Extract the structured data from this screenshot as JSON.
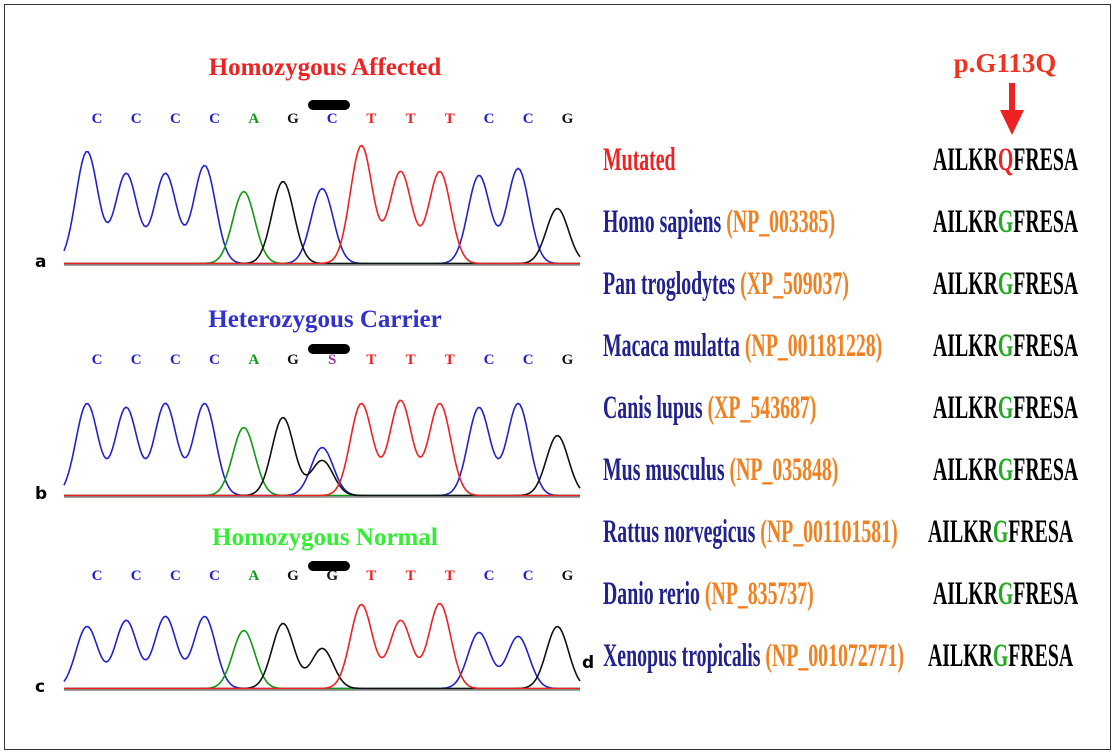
{
  "panels": [
    {
      "label": "a",
      "title": "Homozygous Affected",
      "bases": [
        "C",
        "C",
        "C",
        "C",
        "A",
        "G",
        "C",
        "T",
        "T",
        "T",
        "C",
        "C",
        "G"
      ]
    },
    {
      "label": "b",
      "title": "Heterozygous Carrier",
      "bases": [
        "C",
        "C",
        "C",
        "C",
        "A",
        "G",
        "S",
        "T",
        "T",
        "T",
        "C",
        "C",
        "G"
      ]
    },
    {
      "label": "c",
      "title": "Homozygous Normal",
      "bases": [
        "C",
        "C",
        "C",
        "C",
        "A",
        "G",
        "G",
        "T",
        "T",
        "T",
        "C",
        "C",
        "G"
      ]
    }
  ],
  "alignment": {
    "label": "d",
    "mutation": "p.G113Q",
    "rows": [
      {
        "species": "Mutated",
        "seq_start": "AILKR",
        "residue": "Q",
        "seq_end": "FRESA"
      },
      {
        "species": "Homo sapiens",
        "accession": "(NP_003385)",
        "seq_start": "AILKR",
        "residue": "G",
        "seq_end": "FRESA"
      },
      {
        "species": "Pan troglodytes",
        "accession": "(XP_509037)",
        "seq_start": "AILKR",
        "residue": "G",
        "seq_end": "FRESA"
      },
      {
        "species": "Macaca mulatta",
        "accession": "(NP_001181228)",
        "seq_start": "AILKR",
        "residue": "G",
        "seq_end": "FRESA"
      },
      {
        "species": "Canis lupus",
        "accession": "(XP_543687)",
        "seq_start": "AILKR",
        "residue": "G",
        "seq_end": "FRESA"
      },
      {
        "species": "Mus musculus",
        "accession": "(NP_035848)",
        "seq_start": "AILKR",
        "residue": "G",
        "seq_end": "FRESA"
      },
      {
        "species": "Rattus norvegicus",
        "accession": "(NP_001101581)",
        "seq_start": "AILKR",
        "residue": "G",
        "seq_end": "FRESA"
      },
      {
        "species": "Danio rerio",
        "accession": "(NP_835737)",
        "seq_start": "AILKR",
        "residue": "G",
        "seq_end": "FRESA"
      },
      {
        "species": "Xenopus tropicalis",
        "accession": "(NP_001072771)",
        "seq_start": "AILKR",
        "residue": "G",
        "seq_end": "FRESA"
      }
    ]
  }
}
